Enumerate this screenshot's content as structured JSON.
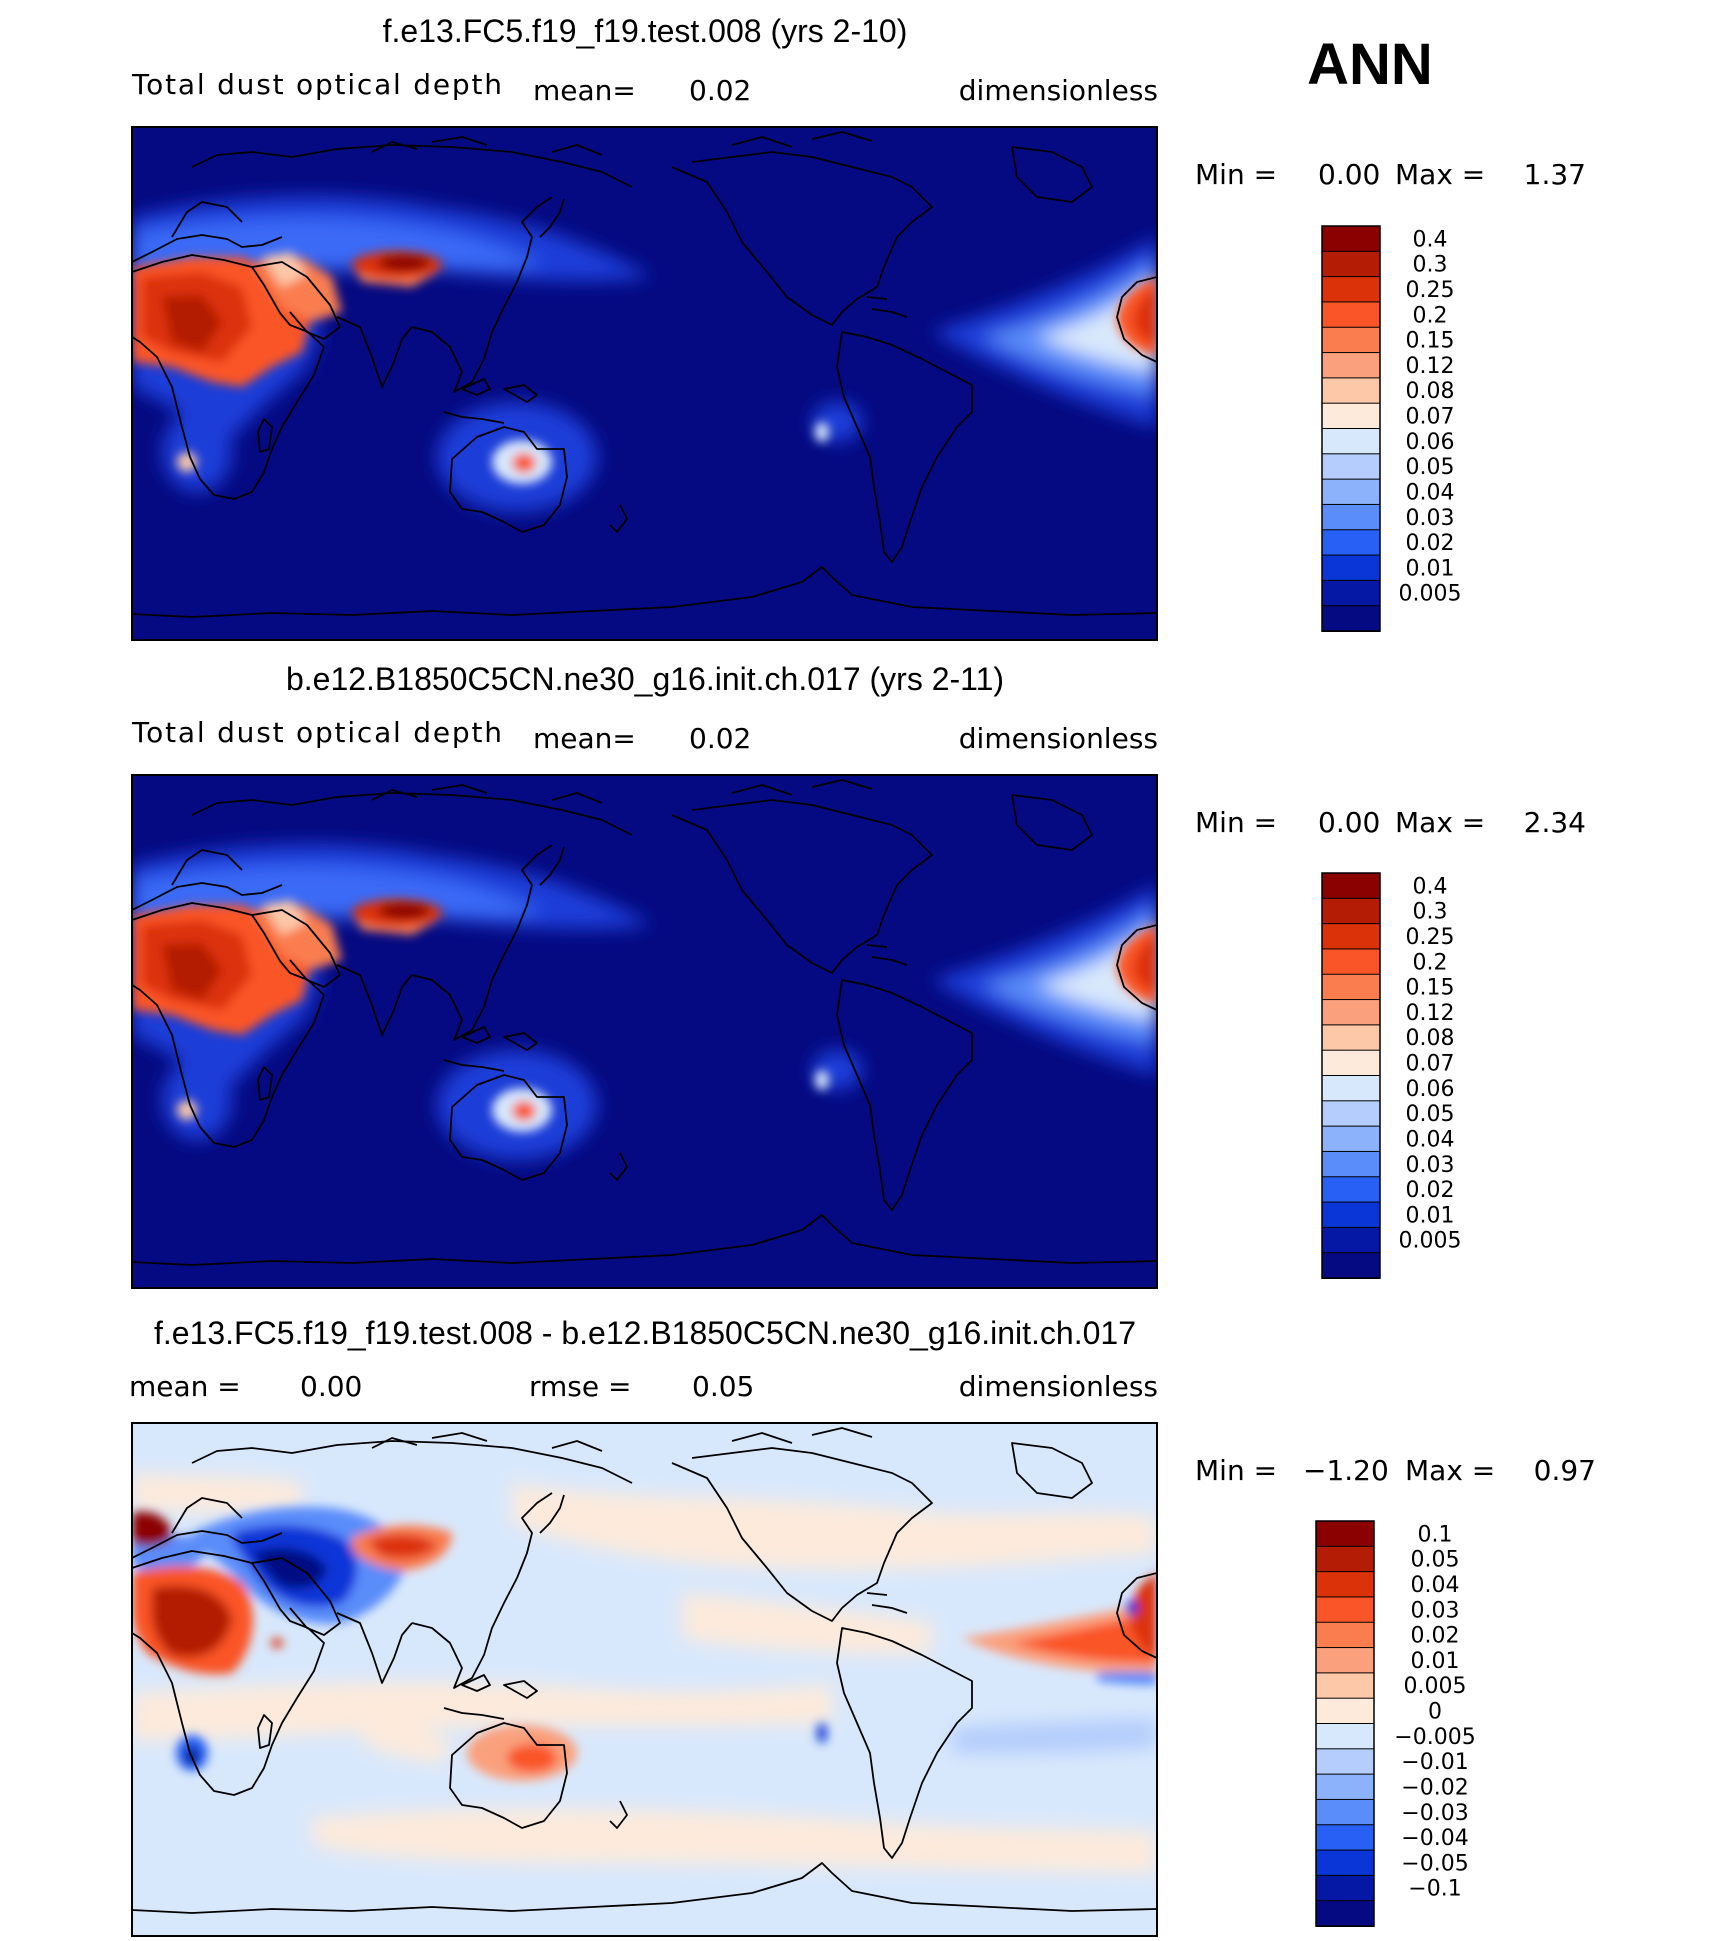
{
  "season_label": "ANN",
  "chart_data": [
    {
      "type": "heatmap",
      "title": "f.e13.FC5.f19_f19.test.008 (yrs 2-10)",
      "variable": "Total dust optical depth",
      "mean_label": "mean=",
      "mean_value": "0.02",
      "units": "dimensionless",
      "min_label": "Min =",
      "min_value": "0.00",
      "max_label": "Max =",
      "max_value": "1.37",
      "levels": [
        "0.4",
        "0.3",
        "0.25",
        "0.2",
        "0.15",
        "0.12",
        "0.08",
        "0.07",
        "0.06",
        "0.05",
        "0.04",
        "0.03",
        "0.02",
        "0.01",
        "0.005"
      ],
      "colors": [
        "#8b0000",
        "#b41c05",
        "#dc320a",
        "#fa5528",
        "#fa7d50",
        "#faa07d",
        "#fcc8a8",
        "#fdeadb",
        "#d8e8fc",
        "#b4cdfc",
        "#8cb2fc",
        "#5a8cfa",
        "#2860f5",
        "#0a35d7",
        "#0518a5",
        "#050a82"
      ]
    },
    {
      "type": "heatmap",
      "title": "b.e12.B1850C5CN.ne30_g16.init.ch.017 (yrs 2-11)",
      "variable": "Total dust optical depth",
      "mean_label": "mean=",
      "mean_value": "0.02",
      "units": "dimensionless",
      "min_label": "Min =",
      "min_value": "0.00",
      "max_label": "Max =",
      "max_value": "2.34",
      "levels": [
        "0.4",
        "0.3",
        "0.25",
        "0.2",
        "0.15",
        "0.12",
        "0.08",
        "0.07",
        "0.06",
        "0.05",
        "0.04",
        "0.03",
        "0.02",
        "0.01",
        "0.005"
      ],
      "colors": [
        "#8b0000",
        "#b41c05",
        "#dc320a",
        "#fa5528",
        "#fa7d50",
        "#faa07d",
        "#fcc8a8",
        "#fdeadb",
        "#d8e8fc",
        "#b4cdfc",
        "#8cb2fc",
        "#5a8cfa",
        "#2860f5",
        "#0a35d7",
        "#0518a5",
        "#050a82"
      ]
    },
    {
      "type": "heatmap",
      "title": "f.e13.FC5.f19_f19.test.008 - b.e12.B1850C5CN.ne30_g16.init.ch.017",
      "mean_label": "mean =",
      "mean_value": "0.00",
      "rmse_label": "rmse =",
      "rmse_value": "0.05",
      "units": "dimensionless",
      "min_label": "Min =",
      "min_value": "−1.20",
      "max_label": "Max =",
      "max_value": "0.97",
      "levels": [
        "0.1",
        "0.05",
        "0.04",
        "0.03",
        "0.02",
        "0.01",
        "0.005",
        "0",
        "−0.005",
        "−0.01",
        "−0.02",
        "−0.03",
        "−0.04",
        "−0.05",
        "−0.1"
      ],
      "colors": [
        "#8b0000",
        "#b41c05",
        "#dc320a",
        "#fa5528",
        "#fa7d50",
        "#faa07d",
        "#fcc8a8",
        "#fdeadb",
        "#d8e8fc",
        "#b4cdfc",
        "#8cb2fc",
        "#5a8cfa",
        "#2860f5",
        "#0a35d7",
        "#0518a5",
        "#050a82"
      ]
    }
  ]
}
